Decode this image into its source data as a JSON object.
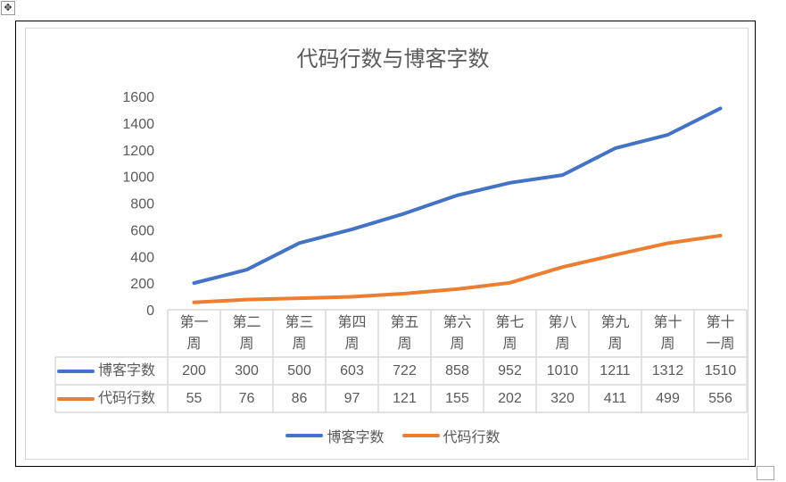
{
  "chart_data": {
    "type": "line",
    "title": "代码行数与博客字数",
    "categories": [
      "第一周",
      "第二周",
      "第三周",
      "第四周",
      "第五周",
      "第六周",
      "第七周",
      "第八周",
      "第九周",
      "第十周",
      "第十一周"
    ],
    "category_lines": [
      [
        "第一",
        "周"
      ],
      [
        "第二",
        "周"
      ],
      [
        "第三",
        "周"
      ],
      [
        "第四",
        "周"
      ],
      [
        "第五",
        "周"
      ],
      [
        "第六",
        "周"
      ],
      [
        "第七",
        "周"
      ],
      [
        "第八",
        "周"
      ],
      [
        "第九",
        "周"
      ],
      [
        "第十",
        "周"
      ],
      [
        "第十",
        "一周"
      ]
    ],
    "series": [
      {
        "name": "博客字数",
        "color": "#4472c4",
        "values": [
          200,
          300,
          500,
          603,
          722,
          858,
          952,
          1010,
          1211,
          1312,
          1510
        ]
      },
      {
        "name": "代码行数",
        "color": "#ed7d31",
        "values": [
          55,
          76,
          86,
          97,
          121,
          155,
          202,
          320,
          411,
          499,
          556
        ]
      }
    ],
    "ylim": [
      0,
      1600
    ],
    "yticks": [
      0,
      200,
      400,
      600,
      800,
      1000,
      1200,
      1400,
      1600
    ],
    "xlabel": "",
    "ylabel": "",
    "grid": false,
    "legend": "bottom",
    "data_table": true
  }
}
